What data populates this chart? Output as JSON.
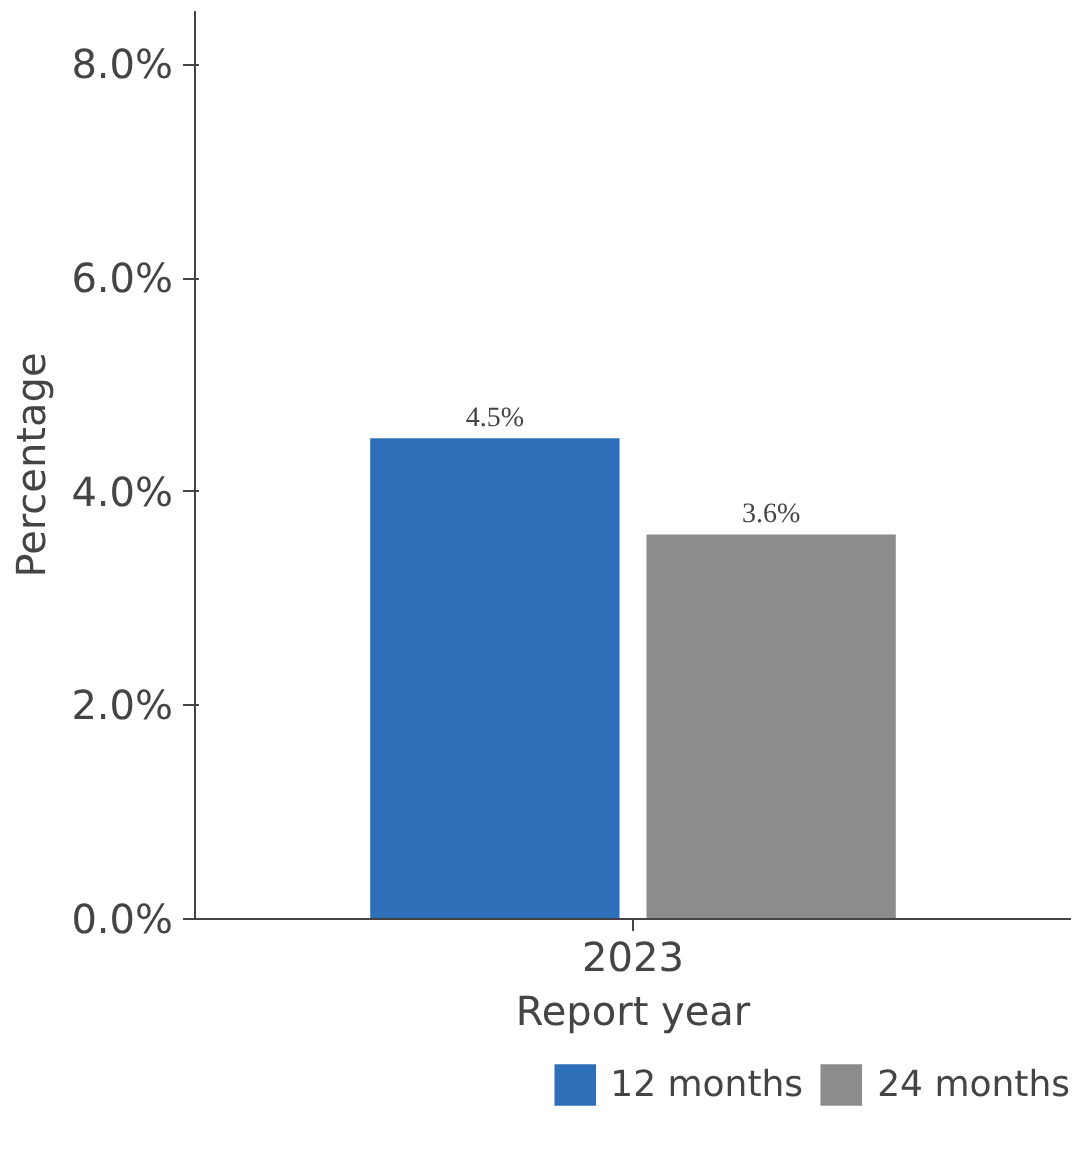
{
  "chart_data": {
    "type": "bar",
    "xlabel": "Report year",
    "ylabel": "Percentage",
    "categories": [
      "2023"
    ],
    "series": [
      {
        "name": "12 months",
        "color": "#2e6fba",
        "values": [
          4.5
        ],
        "value_labels": [
          "4.5%"
        ]
      },
      {
        "name": "24 months",
        "color": "#8c8c8c",
        "values": [
          3.6
        ],
        "value_labels": [
          "3.6%"
        ]
      }
    ],
    "ylim": [
      0,
      8.5
    ],
    "yticks": [
      {
        "value": 0,
        "label": "0.0%"
      },
      {
        "value": 2,
        "label": "2.0%"
      },
      {
        "value": 4,
        "label": "4.0%"
      },
      {
        "value": 6,
        "label": "6.0%"
      },
      {
        "value": 8,
        "label": "8.0%"
      }
    ],
    "grid": false,
    "legend": "bottom"
  }
}
